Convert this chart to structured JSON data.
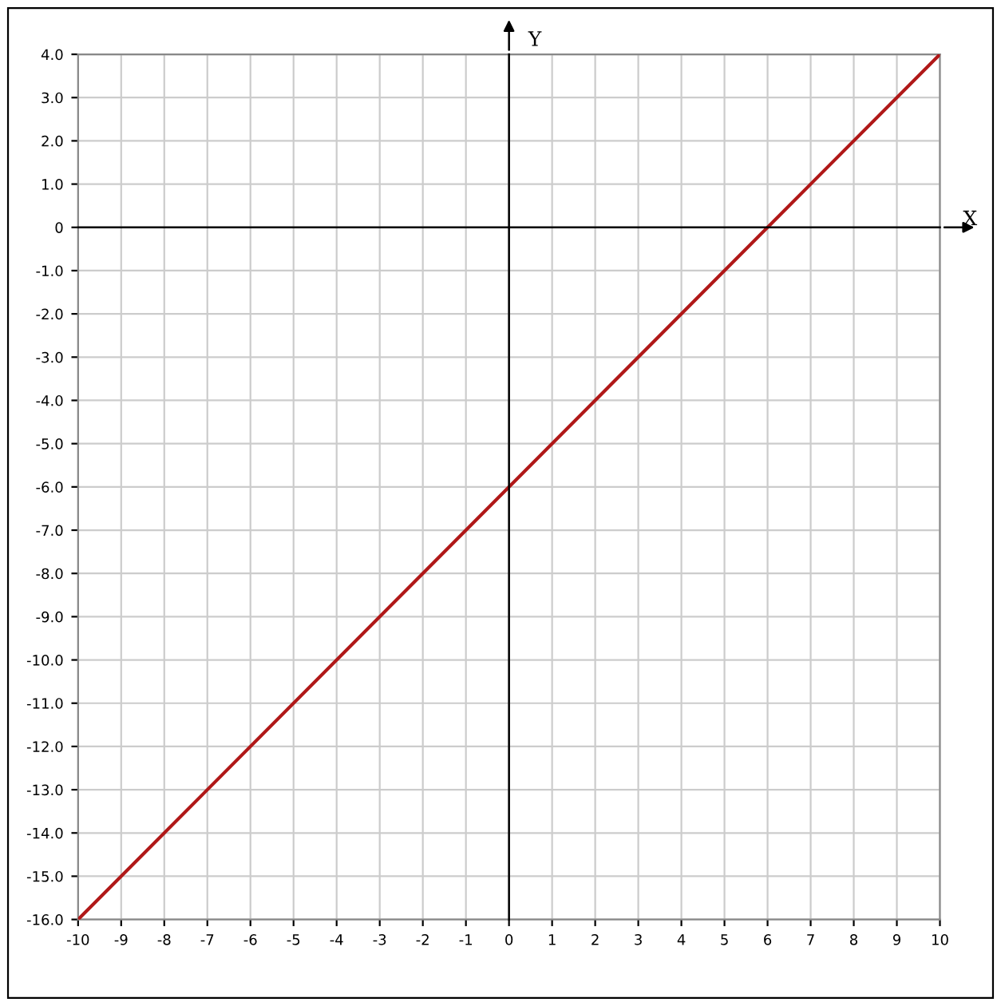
{
  "chart_data": {
    "type": "line",
    "xlabel": "X",
    "ylabel": "Y",
    "x": [
      -10,
      10
    ],
    "series": [
      {
        "color": "#b01818",
        "values": [
          -16,
          4
        ]
      }
    ],
    "xlim": [
      -10,
      10
    ],
    "ylim": [
      -16,
      4
    ],
    "xticks": [
      -10,
      -9,
      -8,
      -7,
      -6,
      -5,
      -4,
      -3,
      -2,
      -1,
      0,
      1,
      2,
      3,
      4,
      5,
      6,
      7,
      8,
      9,
      10
    ],
    "yticks": [
      {
        "value": 4,
        "label": "4.0"
      },
      {
        "value": 3,
        "label": "3.0"
      },
      {
        "value": 2,
        "label": "2.0"
      },
      {
        "value": 1,
        "label": "1.0"
      },
      0,
      {
        "value": -1,
        "label": "-1.0"
      },
      {
        "value": -2,
        "label": "-2.0"
      },
      {
        "value": -3,
        "label": "-3.0"
      },
      {
        "value": -4,
        "label": "-4.0"
      },
      {
        "value": -5,
        "label": "-5.0"
      },
      {
        "value": -6,
        "label": "-6.0"
      },
      {
        "value": -7,
        "label": "-7.0"
      },
      {
        "value": -8,
        "label": "-8.0"
      },
      {
        "value": -9,
        "label": "-9.0"
      },
      {
        "value": -10,
        "label": "-10.0"
      },
      {
        "value": -11,
        "label": "-11.0"
      },
      {
        "value": -12,
        "label": "-12.0"
      },
      {
        "value": -13,
        "label": "-13.0"
      },
      {
        "value": -14,
        "label": "-14.0"
      },
      {
        "value": -15,
        "label": "-15.0"
      },
      {
        "value": -16,
        "label": "-16.0"
      }
    ],
    "grid": true,
    "legend": false,
    "marker": "none",
    "line_style": "solid"
  }
}
